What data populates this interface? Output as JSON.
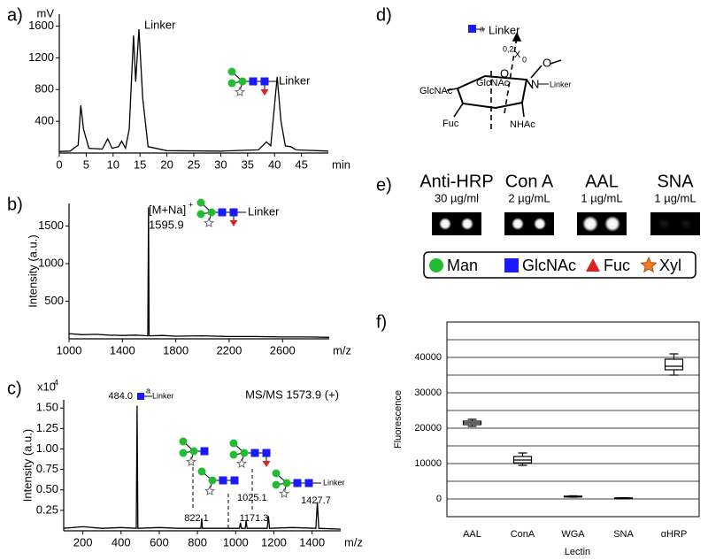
{
  "labels": [
    "a)",
    "b)",
    "c)",
    "d)",
    "e)",
    "f)"
  ],
  "chart_data": [
    {
      "type": "line",
      "y_unit": "mV",
      "x_unit": "min",
      "color": "#000000",
      "xlim": [
        0,
        50
      ],
      "ylim": [
        0,
        1750
      ],
      "xticks": [
        0,
        5,
        10,
        15,
        20,
        25,
        30,
        35,
        40,
        45
      ],
      "yticks": [
        400,
        800,
        1200,
        1600
      ],
      "x": [
        0,
        2,
        3.5,
        4,
        4.5,
        5.5,
        8,
        9,
        9.8,
        11,
        11.6,
        12.3,
        13,
        13.8,
        14.2,
        14.8,
        15.5,
        16.5,
        20,
        30,
        37,
        38.5,
        39.3,
        40,
        40.5,
        41.2,
        42,
        43,
        44,
        46,
        48,
        50
      ],
      "values": [
        20,
        25,
        100,
        600,
        300,
        60,
        50,
        180,
        60,
        80,
        150,
        60,
        300,
        1480,
        900,
        1560,
        700,
        80,
        30,
        25,
        40,
        140,
        90,
        600,
        960,
        400,
        90,
        80,
        40,
        35,
        30,
        25
      ],
      "annotations": [
        "Linker",
        "Linker"
      ]
    },
    {
      "type": "line",
      "y_label": "Intensity (a.u.)",
      "x_unit": "m/z",
      "color": "#000000",
      "xlim": [
        1000,
        2950
      ],
      "ylim": [
        0,
        1800
      ],
      "xticks": [
        1000,
        1400,
        1800,
        2200,
        2600
      ],
      "yticks": [
        500,
        1000,
        1500
      ],
      "x": [
        1000,
        1100,
        1200,
        1300,
        1400,
        1500,
        1590,
        1595.9,
        1600,
        1700,
        1800,
        2000,
        2200,
        2400,
        2600,
        2800,
        2950
      ],
      "values": [
        70,
        55,
        60,
        50,
        45,
        50,
        40,
        1750,
        40,
        45,
        35,
        40,
        30,
        30,
        25,
        25,
        20
      ],
      "annotations": [
        "[M+Na]",
        "+",
        "1595.9",
        "Linker"
      ]
    },
    {
      "type": "line",
      "y_label": "Intensity (a.u.)",
      "x_unit": "m/z",
      "title": "MS/MS 1573.9 (+)",
      "y_multiplier": [
        "x10",
        "4"
      ],
      "color": "#000000",
      "xlim": [
        100,
        1550
      ],
      "ylim": [
        0,
        1.6
      ],
      "xticks": [
        200,
        400,
        600,
        800,
        1000,
        1200,
        1400
      ],
      "yticks": [
        0.25,
        {
          "value": 0.5,
          "label": "0.50"
        },
        0.75,
        {
          "value": 1,
          "label": "1.00"
        },
        1.25,
        {
          "value": 1.5,
          "label": "1.50"
        }
      ],
      "x": [
        100,
        200,
        300,
        400,
        480,
        484,
        488,
        600,
        700,
        800,
        818,
        822.1,
        826,
        1020,
        1025.1,
        1030,
        1050,
        1055,
        1060,
        1165,
        1171.3,
        1177,
        1300,
        1420,
        1427.7,
        1435,
        1550
      ],
      "values": [
        0.03,
        0.05,
        0.03,
        0.04,
        0.03,
        1.53,
        0.03,
        0.04,
        0.03,
        0.03,
        0.03,
        0.15,
        0.03,
        0.03,
        0.1,
        0.03,
        0.03,
        0.12,
        0.03,
        0.03,
        0.18,
        0.03,
        0.04,
        0.03,
        0.35,
        0.03,
        0.02
      ],
      "annotations": [
        "484.0",
        "a",
        "Linker",
        "822.1",
        "1025.1",
        "1171.3",
        "1427.7",
        "Linker"
      ]
    },
    {
      "type": "box",
      "y_label": "Fluorescence",
      "x_label": "Lectin",
      "color": "#ffffff",
      "categories": [
        "AAL",
        "ConA",
        "WGA",
        "SNA",
        "αHRP"
      ],
      "ylim": [
        -5000,
        50000
      ],
      "yticks": [
        0,
        10000,
        20000,
        30000,
        40000
      ],
      "yminorticks": [
        -5000,
        5000,
        15000,
        25000,
        35000,
        45000
      ],
      "boxes": [
        {
          "min": 20500,
          "q1": 21000,
          "median": 21500,
          "q3": 22000,
          "max": 22500
        },
        {
          "min": 9500,
          "q1": 10200,
          "median": 11000,
          "q3": 12000,
          "max": 13000
        },
        {
          "min": 500,
          "q1": 600,
          "median": 700,
          "q3": 800,
          "max": 900
        },
        {
          "min": 150,
          "q1": 200,
          "median": 250,
          "q3": 300,
          "max": 350
        },
        {
          "min": 35000,
          "q1": 36500,
          "median": 37500,
          "q3": 39500,
          "max": 41000
        }
      ]
    }
  ],
  "structure": {
    "residue": "Linker",
    "residue_sup": "a",
    "cleavage": "0,2",
    "cleavage_x": "X",
    "cleavage_sub": "0",
    "methoxy_o": "O",
    "ring_o": "O",
    "amine": "N",
    "linker": "Linker",
    "substituent": "GlcNAc",
    "ring_label": "GlcNAc",
    "fucose": "Fuc",
    "acetamide": "NHAc"
  },
  "dot_blot": {
    "probes": [
      {
        "name": "Anti-HRP",
        "conc": "30 µg/ml"
      },
      {
        "name": "Con A",
        "conc": "2 µg/mL"
      },
      {
        "name": "AAL",
        "conc": "1 µg/mL"
      },
      {
        "name": "SNA",
        "conc": "1 µg/mL"
      }
    ],
    "legend": [
      "Man",
      "GlcNAc",
      "Fuc",
      "Xyl"
    ]
  }
}
